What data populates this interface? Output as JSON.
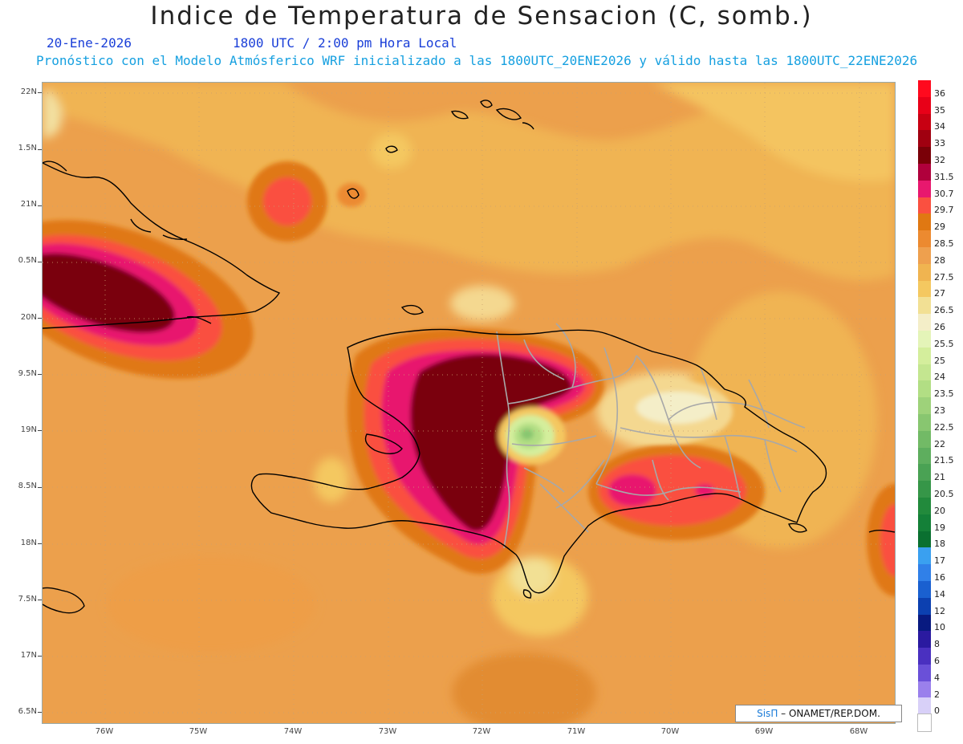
{
  "title": "Indice de Temperatura de Sensacion (C, somb.)",
  "date_text": "20-Ene-2026",
  "time_text": "1800 UTC / 2:00 pm Hora Local",
  "model_text": "Pronóstico con el Modelo Atmósferico WRF inicializado a las 1800UTC_20ENE2026 y válido hasta las  1800UTC_22ENE2026",
  "credit": {
    "brand": "SisΠ",
    "text": "– ONAMET/REP.DOM."
  },
  "y_axis_labels": [
    "22N",
    "1.5N",
    "21N",
    "0.5N",
    "20N",
    "9.5N",
    "19N",
    "8.5N",
    "18N",
    "7.5N",
    "17N",
    "6.5N"
  ],
  "x_axis_labels": [
    "76W",
    "75W",
    "74W",
    "73W",
    "72W",
    "71W",
    "70W",
    "69W",
    "68W"
  ],
  "colorbar": {
    "labels": [
      "36",
      "35",
      "34",
      "33",
      "32",
      "31.5",
      "30.7",
      "29.7",
      "29",
      "28.5",
      "28",
      "27.5",
      "27",
      "26.5",
      "26",
      "25.5",
      "25",
      "24",
      "23.5",
      "23",
      "22.5",
      "22",
      "21.5",
      "21",
      "20.5",
      "20",
      "19",
      "18",
      "17",
      "16",
      "14",
      "12",
      "10",
      "8",
      "6",
      "4",
      "2",
      "0"
    ],
    "colors": [
      "#ff0a1e",
      "#e80018",
      "#c80012",
      "#a00010",
      "#7a0008",
      "#b0003c",
      "#e8186e",
      "#fa5040",
      "#e07812",
      "#ec8a30",
      "#eea04e",
      "#f0b450",
      "#f4c860",
      "#f2e094",
      "#f4eec8",
      "#e4f4b8",
      "#d4ee9c",
      "#c4e690",
      "#b2de84",
      "#9ed27a",
      "#88c670",
      "#72ba66",
      "#5eae5e",
      "#4aa254",
      "#369648",
      "#228a3c",
      "#148038",
      "#0a7030",
      "#3aa0f0",
      "#3080e8",
      "#1a60d0",
      "#0c40b0",
      "#081a80",
      "#2a1aa0",
      "#4a30c0",
      "#6a50d8",
      "#9a80ec",
      "#d8d0f8",
      "#ffffff"
    ]
  },
  "colors": {
    "title": "#222222",
    "date_time": "#1a3fd8",
    "model_line": "#16a0e0",
    "coastline": "#000000",
    "province_border": "#a0a0a0"
  }
}
